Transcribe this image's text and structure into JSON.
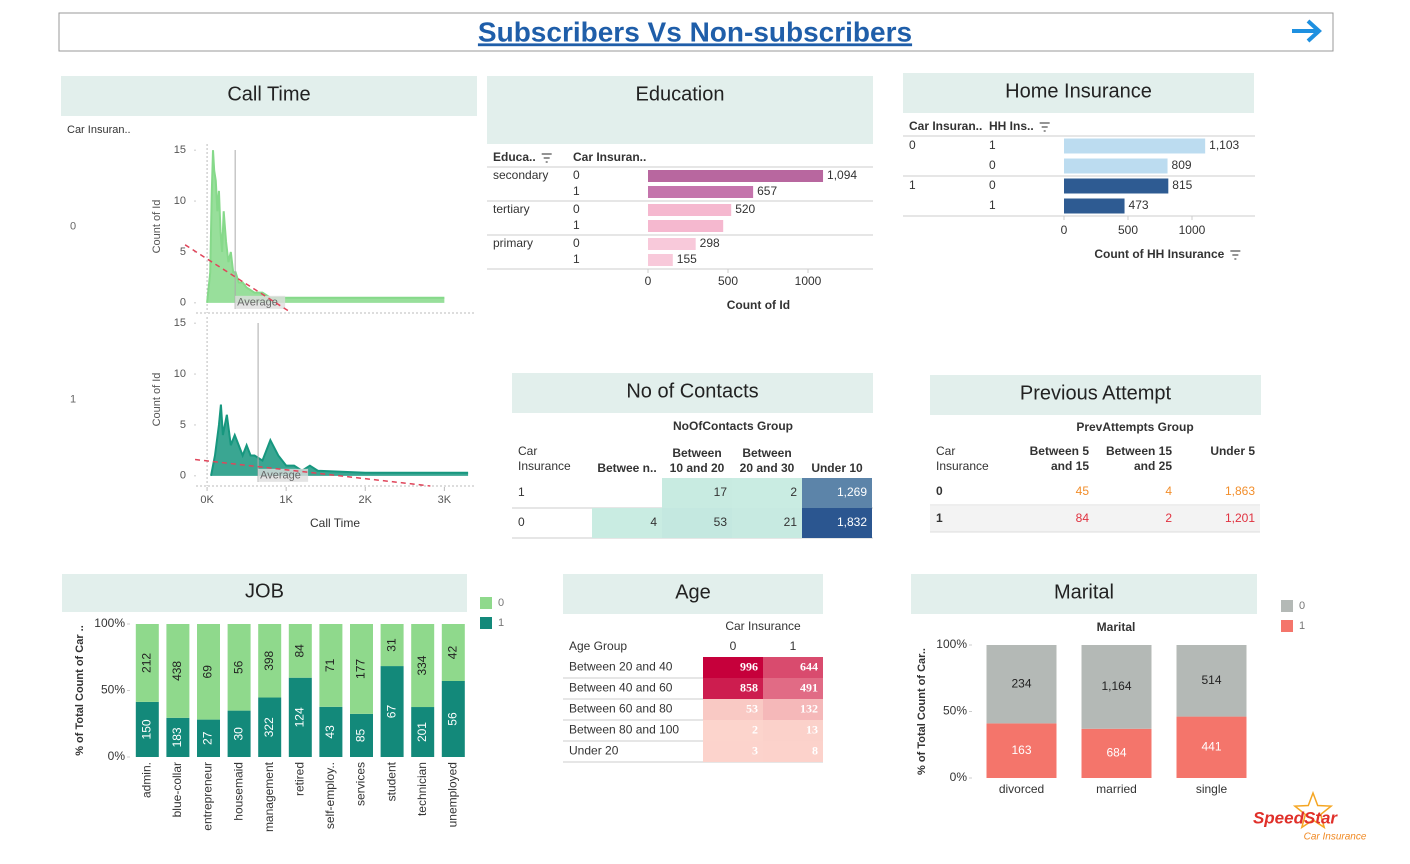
{
  "header": {
    "title": "Subscribers Vs Non-subscribers"
  },
  "logo": {
    "name": "SpeedStar",
    "tagline": "Car Insurance"
  },
  "chart_data": [
    {
      "type": "area",
      "title": "Call Time",
      "row_header": "Car Insuran..",
      "xlabel": "Call Time",
      "ylabel": "Count of Id",
      "annotation": "Average",
      "xlim": [
        -140,
        3400
      ],
      "xticks": [
        {
          "value": 0,
          "label": "0K"
        },
        {
          "value": 1000,
          "label": "1K"
        },
        {
          "value": 2000,
          "label": "2K"
        },
        {
          "value": 3000,
          "label": "3K"
        }
      ],
      "ylim": [
        -1,
        16
      ],
      "yticks": [
        0,
        5,
        10,
        15
      ],
      "panels": [
        {
          "name": "0",
          "color": "#86d98a",
          "x": [
            0,
            40,
            60,
            75,
            90,
            110,
            130,
            150,
            170,
            190,
            210,
            240,
            270,
            300,
            330,
            360,
            400,
            450,
            500,
            600,
            700,
            800,
            1000,
            1500,
            2000,
            2500,
            3000
          ],
          "values": [
            0,
            3,
            11,
            15,
            13,
            12,
            9,
            11,
            7,
            5,
            9,
            6,
            4,
            5,
            3,
            3,
            2,
            2,
            1.5,
            1,
            1,
            0.5,
            0.5,
            0.5,
            0.5,
            0.5,
            0.5
          ],
          "average": 355,
          "trend": {
            "x": [
              -278,
              1050
            ],
            "values": [
              5.7,
              -0.9
            ]
          }
        },
        {
          "name": "1",
          "color": "#17977f",
          "x": [
            50,
            100,
            150,
            175,
            200,
            250,
            300,
            350,
            400,
            450,
            500,
            550,
            600,
            700,
            800,
            900,
            1000,
            1100,
            1200,
            1300,
            1400,
            2000,
            2500,
            3300
          ],
          "values": [
            0,
            2,
            5,
            7,
            4,
            6,
            3,
            4,
            3,
            2,
            3,
            2,
            2,
            1.5,
            3.5,
            2,
            1,
            1,
            0.5,
            1,
            0.5,
            0.3,
            0.3,
            0.3
          ],
          "average": 645,
          "trend": {
            "x": [
              -152,
              2823
            ],
            "values": [
              1.6,
              -1
            ]
          }
        }
      ]
    },
    {
      "type": "hbar",
      "title": "Education",
      "row_headers": [
        "Educa..",
        "Car Insuran.."
      ],
      "categories": [
        "secondary",
        null,
        "tertiary",
        null,
        "primary",
        null
      ],
      "subcategories": [
        "0",
        "1",
        "0",
        "1",
        "0",
        "1"
      ],
      "values": [
        1094,
        657,
        520,
        470,
        298,
        155
      ],
      "value_labels": [
        "1,094",
        "657",
        "520",
        null,
        "298",
        "155"
      ],
      "colors": [
        "#b8679f",
        "#c474ac",
        "#f5b8cf",
        "#f5b8cf",
        "#f8c9da",
        "#f8c9da"
      ],
      "xlim": [
        0,
        1380
      ],
      "xticks": [
        0,
        500,
        1000
      ],
      "xlabel": "Count of Id"
    },
    {
      "type": "hbar",
      "title": "Home Insurance",
      "row_headers": [
        "Car Insuran..",
        "HH Ins.."
      ],
      "categories": [
        "0",
        null,
        "1",
        null
      ],
      "subcategories": [
        "1",
        "0",
        "0",
        "1"
      ],
      "values": [
        1103,
        809,
        815,
        473
      ],
      "value_labels": [
        "1,103",
        "809",
        "815",
        "473"
      ],
      "colors": [
        "#bcdcf0",
        "#bcdcf0",
        "#2e5b92",
        "#2e5b92"
      ],
      "xlim": [
        0,
        1490
      ],
      "xticks": [
        0,
        500,
        1000
      ],
      "xlabel": "Count of HH Insurance"
    },
    {
      "type": "heatmap",
      "title": "No of Contacts",
      "column_group": "NoOfContacts Group",
      "row_header": "Car Insurance",
      "columns": [
        "Betwee n..",
        "Between 10 and 20",
        "Between 20 and 30",
        "Under 10"
      ],
      "rows": [
        "1",
        "0"
      ],
      "values": [
        [
          null,
          17,
          2,
          1269
        ],
        [
          4,
          53,
          21,
          1832
        ]
      ],
      "value_labels": [
        [
          null,
          "17",
          "2",
          "1,269"
        ],
        [
          "4",
          "53",
          "21",
          "1,832"
        ]
      ],
      "color_range": [
        "#c9ece2",
        "#2b5690"
      ]
    },
    {
      "type": "table",
      "title": "Previous Attempt",
      "column_group": "PrevAttempts Group",
      "row_header": "Car Insurance",
      "columns": [
        "Between 5 and 15",
        "Between 15 and 25",
        "Under 5"
      ],
      "rows": [
        "0",
        "1"
      ],
      "values": [
        [
          45,
          4,
          1863
        ],
        [
          84,
          2,
          1201
        ]
      ],
      "value_labels": [
        [
          "45",
          "4",
          "1,863"
        ],
        [
          "84",
          "2",
          "1,201"
        ]
      ],
      "row_colors": [
        "#f28e2b",
        "#e0313f"
      ]
    },
    {
      "type": "stacked100",
      "title": "JOB",
      "ylabel": "% of Total Count of Car ..",
      "categories": [
        "admin.",
        "blue-collar",
        "entrepreneur",
        "housemaid",
        "management",
        "retired",
        "self-employ..",
        "services",
        "student",
        "technician",
        "unemployed"
      ],
      "series": [
        {
          "name": "0",
          "color": "#8fd98c",
          "values": [
            212,
            438,
            69,
            56,
            398,
            84,
            71,
            177,
            31,
            334,
            42
          ]
        },
        {
          "name": "1",
          "color": "#13897a",
          "values": [
            150,
            183,
            27,
            30,
            322,
            124,
            43,
            85,
            67,
            201,
            56
          ]
        }
      ],
      "ylim": [
        0,
        100
      ],
      "yticks": [
        {
          "value": 0,
          "label": "0%"
        },
        {
          "value": 50,
          "label": "50%"
        },
        {
          "value": 100,
          "label": "100%"
        }
      ]
    },
    {
      "type": "heatmap",
      "title": "Age",
      "column_group": "Car Insurance",
      "row_header": "Age Group",
      "columns": [
        "0",
        "1"
      ],
      "rows": [
        "Between 20 and 40",
        "Between 40 and 60",
        "Between 60 and 80",
        "Between 80 and 100",
        "Under 20"
      ],
      "values": [
        [
          996,
          644
        ],
        [
          858,
          491
        ],
        [
          53,
          132
        ],
        [
          2,
          13
        ],
        [
          3,
          8
        ]
      ],
      "color_range": [
        "#fcd4cc",
        "#c6003b"
      ]
    },
    {
      "type": "stacked100",
      "title": "Marital",
      "subtitle": "Marital",
      "ylabel": "% of Total Count of Car..",
      "categories": [
        "divorced",
        "married",
        "single"
      ],
      "series": [
        {
          "name": "0",
          "color": "#b4b9b6",
          "values": [
            234,
            1164,
            514
          ],
          "value_labels": [
            "234",
            "1,164",
            "514"
          ]
        },
        {
          "name": "1",
          "color": "#f4756b",
          "values": [
            163,
            684,
            441
          ]
        }
      ],
      "ylim": [
        0,
        100
      ],
      "yticks": [
        {
          "value": 0,
          "label": "0%"
        },
        {
          "value": 50,
          "label": "50%"
        },
        {
          "value": 100,
          "label": "100%"
        }
      ]
    }
  ]
}
